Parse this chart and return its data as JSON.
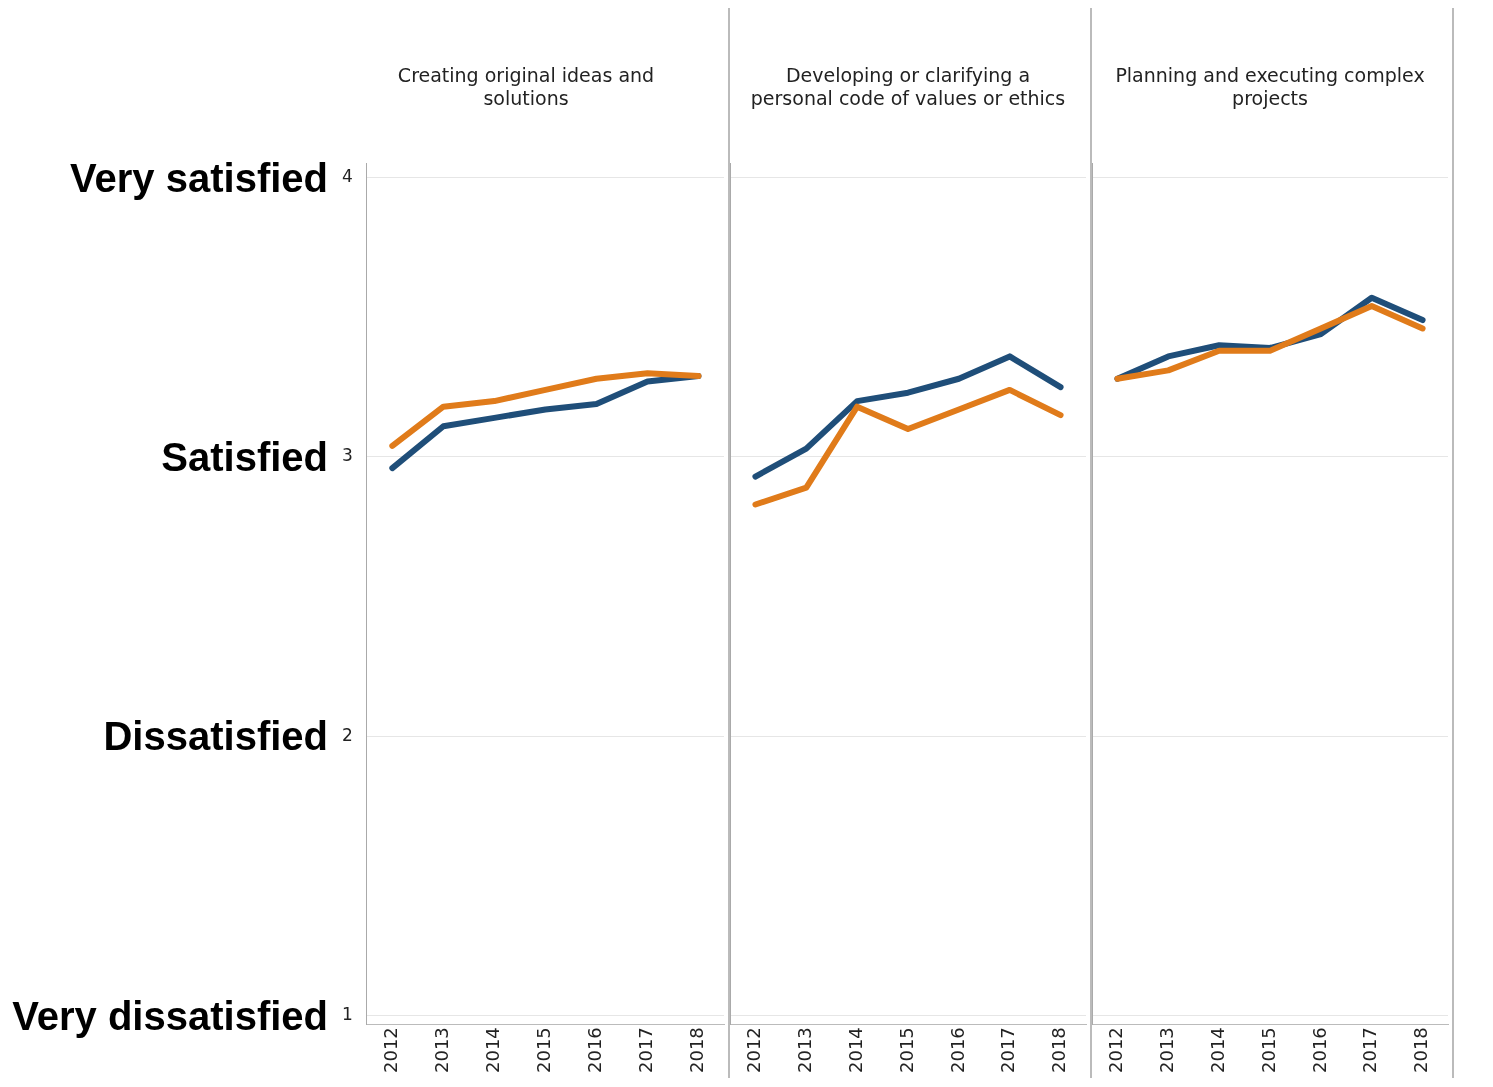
{
  "chart_data": [
    {
      "type": "line",
      "title": "Creating original ideas and solutions",
      "categories": [
        "2012",
        "2013",
        "2014",
        "2015",
        "2016",
        "2017",
        "2018"
      ],
      "series": [
        {
          "color": "#e07b1a",
          "values": [
            3.04,
            3.18,
            3.2,
            3.24,
            3.28,
            3.3,
            3.29
          ]
        },
        {
          "color": "#1f4e79",
          "values": [
            2.96,
            3.11,
            3.14,
            3.17,
            3.19,
            3.27,
            3.29
          ]
        }
      ],
      "ylim": [
        0.97,
        4.05
      ],
      "yticks": [
        1,
        2,
        3,
        4
      ],
      "grid": "y",
      "legend": false,
      "marker": "none",
      "line_style": "solid",
      "annotations": [
        "Very satisfied",
        "Satisfied",
        "Dissatisfied",
        "Very dissatisfied"
      ]
    },
    {
      "type": "line",
      "title": "Developing or clarifying a personal code of values or ethics",
      "categories": [
        "2012",
        "2013",
        "2014",
        "2015",
        "2016",
        "2017",
        "2018"
      ],
      "series": [
        {
          "color": "#e07b1a",
          "values": [
            2.83,
            2.89,
            3.18,
            3.1,
            3.17,
            3.24,
            3.15
          ]
        },
        {
          "color": "#1f4e79",
          "values": [
            2.93,
            3.03,
            3.2,
            3.23,
            3.28,
            3.36,
            3.25
          ]
        }
      ],
      "ylim": [
        0.97,
        4.05
      ],
      "yticks": [
        1,
        2,
        3,
        4
      ],
      "grid": "y",
      "legend": false,
      "marker": "none",
      "line_style": "solid",
      "tick_labels": "x"
    },
    {
      "type": "line",
      "title": "Planning and executing complex projects",
      "categories": [
        "2012",
        "2013",
        "2014",
        "2015",
        "2016",
        "2017",
        "2018"
      ],
      "series": [
        {
          "color": "#e07b1a",
          "values": [
            3.28,
            3.31,
            3.38,
            3.38,
            3.46,
            3.54,
            3.46
          ]
        },
        {
          "color": "#1f4e79",
          "values": [
            3.28,
            3.36,
            3.4,
            3.39,
            3.44,
            3.57,
            3.49
          ]
        }
      ],
      "ylim": [
        0.97,
        4.05
      ],
      "yticks": [
        1,
        2,
        3,
        4
      ],
      "grid": "y",
      "legend": false,
      "marker": "none",
      "line_style": "solid",
      "tick_labels": "x"
    }
  ]
}
